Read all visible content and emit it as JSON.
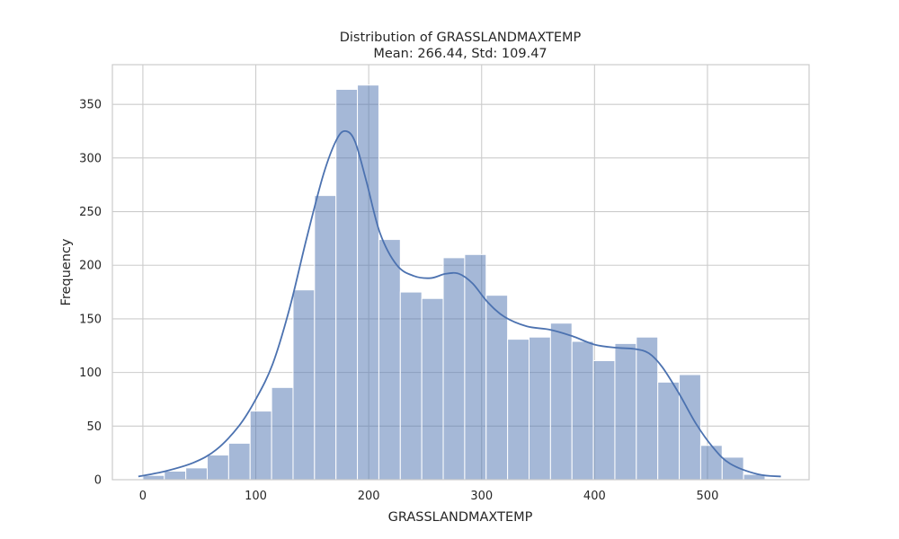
{
  "chart_data": {
    "type": "bar",
    "title": "Distribution of GRASSLANDMAXTEMP",
    "subtitle": "Mean: 266.44, Std: 109.47",
    "xlabel": "GRASSLANDMAXTEMP",
    "ylabel": "Frequency",
    "xlim": [
      -27,
      590
    ],
    "ylim": [
      0,
      387
    ],
    "xticks": [
      0,
      100,
      200,
      300,
      400,
      500
    ],
    "yticks": [
      0,
      50,
      100,
      150,
      200,
      250,
      300,
      350
    ],
    "grid": true,
    "bin_edges": [
      0,
      19,
      38,
      57,
      76,
      95,
      114,
      133,
      152,
      171,
      190,
      209,
      228,
      247,
      266,
      285,
      304,
      323,
      342,
      361,
      380,
      399,
      418,
      437,
      456,
      475,
      494,
      513,
      532,
      551
    ],
    "values": [
      4,
      8,
      11,
      23,
      34,
      64,
      86,
      177,
      265,
      364,
      368,
      224,
      175,
      169,
      207,
      210,
      172,
      131,
      133,
      146,
      129,
      111,
      127,
      133,
      91,
      98,
      32,
      21,
      5
    ],
    "kde": {
      "x": [
        -4,
        20,
        45,
        65,
        85,
        100,
        115,
        130,
        145,
        160,
        172,
        180,
        188,
        198,
        210,
        225,
        240,
        255,
        268,
        280,
        292,
        305,
        320,
        340,
        360,
        380,
        400,
        420,
        435,
        448,
        460,
        475,
        490,
        505,
        520,
        545,
        565
      ],
      "y": [
        3,
        8,
        16,
        28,
        50,
        75,
        108,
        160,
        225,
        285,
        318,
        325,
        315,
        278,
        230,
        200,
        190,
        188,
        192,
        192,
        183,
        166,
        152,
        143,
        140,
        134,
        126,
        123,
        122,
        118,
        105,
        80,
        52,
        30,
        15,
        5,
        3
      ]
    }
  }
}
